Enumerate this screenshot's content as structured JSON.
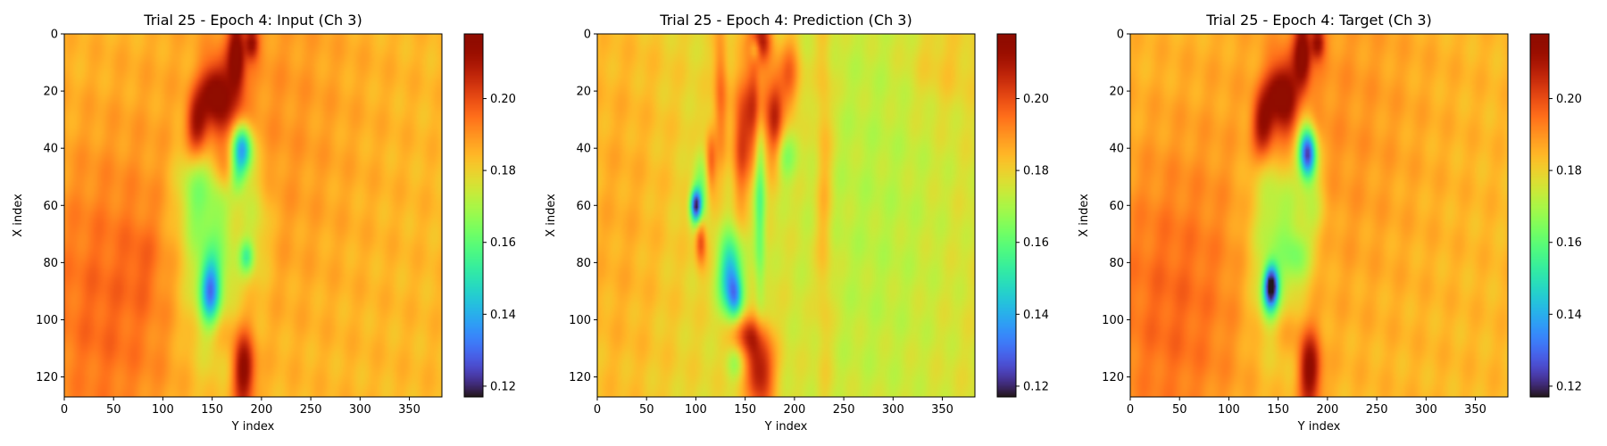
{
  "chart_data": [
    {
      "type": "heatmap",
      "title": "Trial 25 - Epoch 4: Input (Ch 3)",
      "xlabel": "Y index",
      "ylabel": "X index",
      "x_ticks": [
        0,
        50,
        100,
        150,
        200,
        250,
        300,
        350
      ],
      "y_ticks": [
        0,
        20,
        40,
        60,
        80,
        100,
        120
      ],
      "xlim": [
        0,
        383
      ],
      "ylim": [
        127,
        0
      ],
      "colormap": "turbo",
      "colorbar": {
        "range": [
          0.117,
          0.218
        ],
        "ticks": [
          0.12,
          0.14,
          0.16,
          0.18,
          0.2
        ],
        "tick_labels": [
          "0.12",
          "0.14",
          "0.16",
          "0.18",
          "0.20"
        ]
      },
      "background_value": 0.184,
      "features": [
        {
          "y": 40,
          "x": 95,
          "sy": 55,
          "sx": 40,
          "v": 0.012
        },
        {
          "y": 200,
          "x": 30,
          "sy": 70,
          "sx": 45,
          "v": 0.006
        },
        {
          "y": 160,
          "x": 25,
          "sy": 14,
          "sx": 12,
          "v": 0.026
        },
        {
          "y": 150,
          "x": 20,
          "sy": 9,
          "sx": 6,
          "v": 0.018
        },
        {
          "y": 175,
          "x": 7,
          "sy": 6,
          "sx": 10,
          "v": 0.028
        },
        {
          "y": 190,
          "x": 3,
          "sy": 5,
          "sx": 4,
          "v": 0.025
        },
        {
          "y": 135,
          "x": 32,
          "sy": 8,
          "sx": 8,
          "v": 0.028
        },
        {
          "y": 165,
          "x": 48,
          "sy": 8,
          "sx": 6,
          "v": 0.012
        },
        {
          "y": 182,
          "x": 118,
          "sy": 8,
          "sx": 10,
          "v": 0.032
        },
        {
          "y": 160,
          "x": 103,
          "sy": 12,
          "sx": 6,
          "v": 0.008
        },
        {
          "y": 150,
          "x": 70,
          "sy": 22,
          "sx": 30,
          "v": -0.022
        },
        {
          "y": 130,
          "x": 55,
          "sy": 12,
          "sx": 10,
          "v": -0.01
        },
        {
          "y": 180,
          "x": 40,
          "sy": 7,
          "sx": 6,
          "v": -0.05
        },
        {
          "y": 175,
          "x": 50,
          "sy": 6,
          "sx": 5,
          "v": -0.018
        },
        {
          "y": 148,
          "x": 90,
          "sy": 7,
          "sx": 8,
          "v": -0.04
        },
        {
          "y": 195,
          "x": 65,
          "sy": 10,
          "sx": 15,
          "v": -0.01
        },
        {
          "y": 185,
          "x": 78,
          "sy": 5,
          "sx": 4,
          "v": -0.022
        },
        {
          "y": 80,
          "x": 80,
          "sy": 12,
          "sx": 10,
          "v": 0.004
        }
      ]
    },
    {
      "type": "heatmap",
      "title": "Trial 25 - Epoch 4: Prediction (Ch 3)",
      "xlabel": "Y index",
      "ylabel": "X index",
      "x_ticks": [
        0,
        50,
        100,
        150,
        200,
        250,
        300,
        350
      ],
      "y_ticks": [
        0,
        20,
        40,
        60,
        80,
        100,
        120
      ],
      "xlim": [
        0,
        383
      ],
      "ylim": [
        127,
        0
      ],
      "colormap": "turbo",
      "colorbar": {
        "range": [
          0.117,
          0.218
        ],
        "ticks": [
          0.12,
          0.14,
          0.16,
          0.18,
          0.2
        ],
        "tick_labels": [
          "0.12",
          "0.14",
          "0.16",
          "0.18",
          "0.20"
        ]
      },
      "background_value": 0.178,
      "features": [
        {
          "y": 20,
          "x": 60,
          "sy": 45,
          "sx": 70,
          "v": 0.008
        },
        {
          "y": 280,
          "x": 60,
          "sy": 60,
          "sx": 70,
          "v": -0.006
        },
        {
          "y": 350,
          "x": 10,
          "sy": 25,
          "sx": 12,
          "v": 0.006
        },
        {
          "y": 160,
          "x": 25,
          "sy": 10,
          "sx": 15,
          "v": 0.028
        },
        {
          "y": 145,
          "x": 40,
          "sy": 6,
          "sx": 15,
          "v": 0.02
        },
        {
          "y": 180,
          "x": 30,
          "sy": 6,
          "sx": 12,
          "v": 0.026
        },
        {
          "y": 195,
          "x": 15,
          "sy": 8,
          "sx": 10,
          "v": 0.02
        },
        {
          "y": 165,
          "x": 2,
          "sy": 8,
          "sx": 5,
          "v": 0.03
        },
        {
          "y": 125,
          "x": 20,
          "sy": 5,
          "sx": 18,
          "v": 0.018
        },
        {
          "y": 115,
          "x": 45,
          "sy": 4,
          "sx": 8,
          "v": 0.02
        },
        {
          "y": 105,
          "x": 72,
          "sy": 4,
          "sx": 6,
          "v": 0.025
        },
        {
          "y": 165,
          "x": 118,
          "sy": 10,
          "sx": 10,
          "v": 0.035
        },
        {
          "y": 150,
          "x": 105,
          "sy": 12,
          "sx": 5,
          "v": 0.022
        },
        {
          "y": 230,
          "x": 50,
          "sy": 6,
          "sx": 50,
          "v": 0.01
        },
        {
          "y": 100,
          "x": 60,
          "sy": 4,
          "sx": 4,
          "v": -0.055
        },
        {
          "y": 105,
          "x": 55,
          "sy": 6,
          "sx": 10,
          "v": -0.015
        },
        {
          "y": 135,
          "x": 85,
          "sy": 8,
          "sx": 10,
          "v": -0.04
        },
        {
          "y": 140,
          "x": 92,
          "sy": 5,
          "sx": 5,
          "v": -0.02
        },
        {
          "y": 165,
          "x": 55,
          "sy": 4,
          "sx": 28,
          "v": -0.02
        },
        {
          "y": 190,
          "x": 43,
          "sy": 8,
          "sx": 6,
          "v": -0.012
        },
        {
          "y": 160,
          "x": 5,
          "sy": 4,
          "sx": 3,
          "v": -0.02
        },
        {
          "y": 140,
          "x": 115,
          "sy": 6,
          "sx": 4,
          "v": -0.01
        }
      ]
    },
    {
      "type": "heatmap",
      "title": "Trial 25 - Epoch 4: Target (Ch 3)",
      "xlabel": "Y index",
      "ylabel": "X index",
      "x_ticks": [
        0,
        50,
        100,
        150,
        200,
        250,
        300,
        350
      ],
      "y_ticks": [
        0,
        20,
        40,
        60,
        80,
        100,
        120
      ],
      "xlim": [
        0,
        383
      ],
      "ylim": [
        127,
        0
      ],
      "colormap": "turbo",
      "colorbar": {
        "range": [
          0.117,
          0.218
        ],
        "ticks": [
          0.12,
          0.14,
          0.16,
          0.18,
          0.2
        ],
        "tick_labels": [
          "0.12",
          "0.14",
          "0.16",
          "0.18",
          "0.20"
        ]
      },
      "background_value": 0.184,
      "features": [
        {
          "y": 40,
          "x": 95,
          "sy": 55,
          "sx": 40,
          "v": 0.012
        },
        {
          "y": 200,
          "x": 30,
          "sy": 70,
          "sx": 45,
          "v": 0.006
        },
        {
          "y": 160,
          "x": 25,
          "sy": 14,
          "sx": 12,
          "v": 0.026
        },
        {
          "y": 150,
          "x": 20,
          "sy": 9,
          "sx": 6,
          "v": 0.018
        },
        {
          "y": 175,
          "x": 7,
          "sy": 6,
          "sx": 10,
          "v": 0.028
        },
        {
          "y": 190,
          "x": 3,
          "sy": 5,
          "sx": 4,
          "v": 0.025
        },
        {
          "y": 135,
          "x": 32,
          "sy": 8,
          "sx": 8,
          "v": 0.028
        },
        {
          "y": 182,
          "x": 118,
          "sy": 8,
          "sx": 10,
          "v": 0.032
        },
        {
          "y": 160,
          "x": 103,
          "sy": 12,
          "sx": 6,
          "v": 0.008
        },
        {
          "y": 150,
          "x": 70,
          "sy": 20,
          "sx": 28,
          "v": -0.02
        },
        {
          "y": 175,
          "x": 30,
          "sy": 8,
          "sx": 10,
          "v": -0.015
        },
        {
          "y": 180,
          "x": 42,
          "sy": 6,
          "sx": 6,
          "v": -0.06
        },
        {
          "y": 143,
          "x": 88,
          "sy": 5,
          "sx": 5,
          "v": -0.058
        },
        {
          "y": 140,
          "x": 93,
          "sy": 6,
          "sx": 6,
          "v": -0.015
        },
        {
          "y": 185,
          "x": 60,
          "sy": 10,
          "sx": 10,
          "v": -0.01
        },
        {
          "y": 170,
          "x": 78,
          "sy": 8,
          "sx": 6,
          "v": -0.012
        }
      ]
    }
  ]
}
